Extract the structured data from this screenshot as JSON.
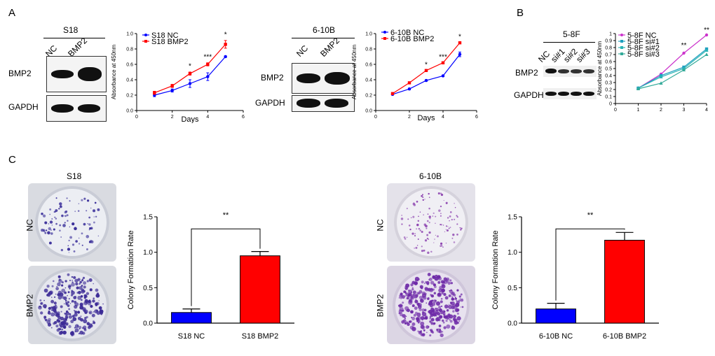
{
  "panel_labels": {
    "a": "A",
    "b": "B",
    "c": "C"
  },
  "blots": {
    "s18": {
      "title": "S18",
      "lanes": [
        "NC",
        "BMP2"
      ],
      "rows": [
        "BMP2",
        "GAPDH"
      ]
    },
    "b610": {
      "title": "6-10B",
      "lanes": [
        "NC",
        "BMP2"
      ],
      "rows": [
        "BMP2",
        "GAPDH"
      ]
    },
    "f58": {
      "title": "5-8F",
      "lanes": [
        "NC",
        "si#1",
        "si#2",
        "si#3"
      ],
      "rows": [
        "BMP2",
        "GAPDH"
      ]
    }
  },
  "plates": {
    "s18": {
      "title": "S18",
      "rows": [
        "NC",
        "BMP2"
      ]
    },
    "b610": {
      "title": "6-10B",
      "rows": [
        "NC",
        "BMP2"
      ]
    }
  },
  "colors": {
    "blue": "#0000ff",
    "red": "#ff0000",
    "magenta": "#cc33cc",
    "teal1": "#1e9fbf",
    "teal2": "#2ab5b5",
    "teal3": "#33aa99"
  },
  "chart_data": [
    {
      "id": "cckS18",
      "type": "line",
      "ylabel": "Absorbance at 450nm",
      "xlabel": "Days",
      "xlim": [
        0,
        6
      ],
      "ylim": [
        0,
        1.0
      ],
      "xticks": [
        0,
        2,
        4,
        6
      ],
      "yticks": [
        0.0,
        0.2,
        0.4,
        0.6,
        0.8,
        1.0
      ],
      "ytick_labels": [
        "0.0",
        "0.2",
        "0.4",
        "0.6",
        "0.8",
        "1.0"
      ],
      "series": [
        {
          "name": "S18 NC",
          "color": "#0000ff",
          "marker": "circle",
          "x": [
            1,
            2,
            3,
            4,
            5
          ],
          "y": [
            0.2,
            0.26,
            0.35,
            0.44,
            0.7
          ],
          "err": [
            0.02,
            0.02,
            0.05,
            0.05,
            0.01
          ]
        },
        {
          "name": "S18 BMP2",
          "color": "#ff0000",
          "marker": "square",
          "x": [
            1,
            2,
            3,
            4,
            5
          ],
          "y": [
            0.23,
            0.32,
            0.48,
            0.6,
            0.86
          ],
          "err": [
            0.02,
            0.02,
            0.02,
            0.02,
            0.05
          ]
        }
      ],
      "annotations": [
        {
          "x": 3,
          "y": 0.55,
          "text": "*"
        },
        {
          "x": 4,
          "y": 0.67,
          "text": "***"
        },
        {
          "x": 5,
          "y": 0.96,
          "text": "*"
        }
      ]
    },
    {
      "id": "cck610",
      "type": "line",
      "ylabel": "Absorbance at 450nm",
      "xlabel": "Days",
      "xlim": [
        0,
        6
      ],
      "ylim": [
        0,
        1.0
      ],
      "xticks": [
        0,
        2,
        4,
        6
      ],
      "yticks": [
        0.0,
        0.2,
        0.4,
        0.6,
        0.8,
        1.0
      ],
      "ytick_labels": [
        "0.0",
        "0.2",
        "0.4",
        "0.6",
        "0.8",
        "1.0"
      ],
      "series": [
        {
          "name": "6-10B NC",
          "color": "#0000ff",
          "marker": "circle",
          "x": [
            1,
            2,
            3,
            4,
            5
          ],
          "y": [
            0.21,
            0.28,
            0.39,
            0.45,
            0.73
          ],
          "err": [
            0.01,
            0.01,
            0.01,
            0.01,
            0.03
          ]
        },
        {
          "name": "6-10B BMP2",
          "color": "#ff0000",
          "marker": "square",
          "x": [
            1,
            2,
            3,
            4,
            5
          ],
          "y": [
            0.22,
            0.36,
            0.52,
            0.62,
            0.88
          ],
          "err": [
            0.01,
            0.01,
            0.01,
            0.01,
            0.01
          ]
        }
      ],
      "annotations": [
        {
          "x": 3,
          "y": 0.57,
          "text": "*"
        },
        {
          "x": 4,
          "y": 0.67,
          "text": "***"
        },
        {
          "x": 5,
          "y": 0.93,
          "text": "*"
        }
      ]
    },
    {
      "id": "cck58f",
      "type": "line",
      "ylabel": "Absorbance at 450nm",
      "xlabel": "",
      "xlim": [
        0,
        4
      ],
      "ylim": [
        0,
        1.0
      ],
      "xticks": [
        0,
        1,
        2,
        3,
        4
      ],
      "yticks": [
        0.0,
        0.1,
        0.2,
        0.3,
        0.4,
        0.5,
        0.6,
        0.7,
        0.8,
        0.9,
        1.0
      ],
      "ytick_labels": [
        "0",
        "0.1",
        "0.2",
        "0.3",
        "0.4",
        "0.5",
        "0.6",
        "0.7",
        "0.8",
        "0.9",
        "1"
      ],
      "series": [
        {
          "name": "5-8F NC",
          "color": "#cc33cc",
          "marker": "circle",
          "x": [
            1,
            2,
            3,
            4
          ],
          "y": [
            0.22,
            0.42,
            0.72,
            0.98
          ],
          "err": [
            0,
            0,
            0,
            0
          ]
        },
        {
          "name": "5-8F si#1",
          "color": "#1e9fbf",
          "marker": "square",
          "x": [
            1,
            2,
            3,
            4
          ],
          "y": [
            0.22,
            0.4,
            0.52,
            0.78
          ],
          "err": [
            0,
            0,
            0,
            0
          ]
        },
        {
          "name": "5-8F si#2",
          "color": "#2ab5b5",
          "marker": "triangle",
          "x": [
            1,
            2,
            3,
            4
          ],
          "y": [
            0.22,
            0.38,
            0.5,
            0.76
          ],
          "err": [
            0,
            0,
            0,
            0
          ]
        },
        {
          "name": "5-8F si#3",
          "color": "#33aa99",
          "marker": "triangle",
          "x": [
            1,
            2,
            3,
            4
          ],
          "y": [
            0.21,
            0.29,
            0.48,
            0.7
          ],
          "err": [
            0,
            0,
            0,
            0
          ]
        }
      ],
      "annotations": [
        {
          "x": 3,
          "y": 0.8,
          "text": "**"
        },
        {
          "x": 4,
          "y": 1.02,
          "text": "**"
        }
      ]
    },
    {
      "id": "colS18",
      "type": "bar",
      "ylabel": "Colony Formation Rate",
      "ylim": [
        0,
        1.5
      ],
      "yticks": [
        0.0,
        0.5,
        1.0,
        1.5
      ],
      "ytick_labels": [
        "0.0",
        "0.5",
        "1.0",
        "1.5"
      ],
      "categories": [
        "S18 NC",
        "S18 BMP2"
      ],
      "values": [
        0.15,
        0.95
      ],
      "err": [
        0.05,
        0.06
      ],
      "colors": [
        "#0000ff",
        "#ff0000"
      ],
      "sig": {
        "text": "**",
        "y": 1.45
      }
    },
    {
      "id": "col610",
      "type": "bar",
      "ylabel": "Colony Formation Rate",
      "ylim": [
        0,
        1.5
      ],
      "yticks": [
        0.0,
        0.5,
        1.0,
        1.5
      ],
      "ytick_labels": [
        "0.0",
        "0.5",
        "1.0",
        "1.5"
      ],
      "categories": [
        "6-10B NC",
        "6-10B BMP2"
      ],
      "values": [
        0.2,
        1.17
      ],
      "err": [
        0.08,
        0.11
      ],
      "colors": [
        "#0000ff",
        "#ff0000"
      ],
      "sig": {
        "text": "**",
        "y": 1.45
      }
    }
  ]
}
